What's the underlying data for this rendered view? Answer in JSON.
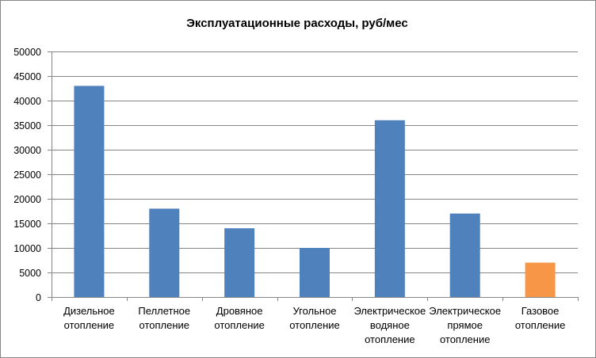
{
  "chart_data": {
    "type": "bar",
    "title": "Эксплуатационные расходы, руб/мес",
    "xlabel": "",
    "ylabel": "",
    "categories": [
      [
        "Дизельное",
        "отопление"
      ],
      [
        "Пеллетное",
        "отопление"
      ],
      [
        "Дровяное",
        "отопление"
      ],
      [
        "Угольное",
        "отопление"
      ],
      [
        "Электрическое",
        "водяное",
        "отопление"
      ],
      [
        "Электрическое",
        "прямое",
        "отопление"
      ],
      [
        "Газовое",
        "отопление"
      ]
    ],
    "values": [
      43000,
      18000,
      14000,
      10000,
      36000,
      17000,
      7000
    ],
    "colors": [
      "#4f81bd",
      "#4f81bd",
      "#4f81bd",
      "#4f81bd",
      "#4f81bd",
      "#4f81bd",
      "#f79646"
    ],
    "ylim": [
      0,
      50000
    ],
    "yticks": [
      "0",
      "5000",
      "10000",
      "15000",
      "20000",
      "25000",
      "30000",
      "35000",
      "40000",
      "45000",
      "50000"
    ],
    "grid": true,
    "legend": "none"
  }
}
